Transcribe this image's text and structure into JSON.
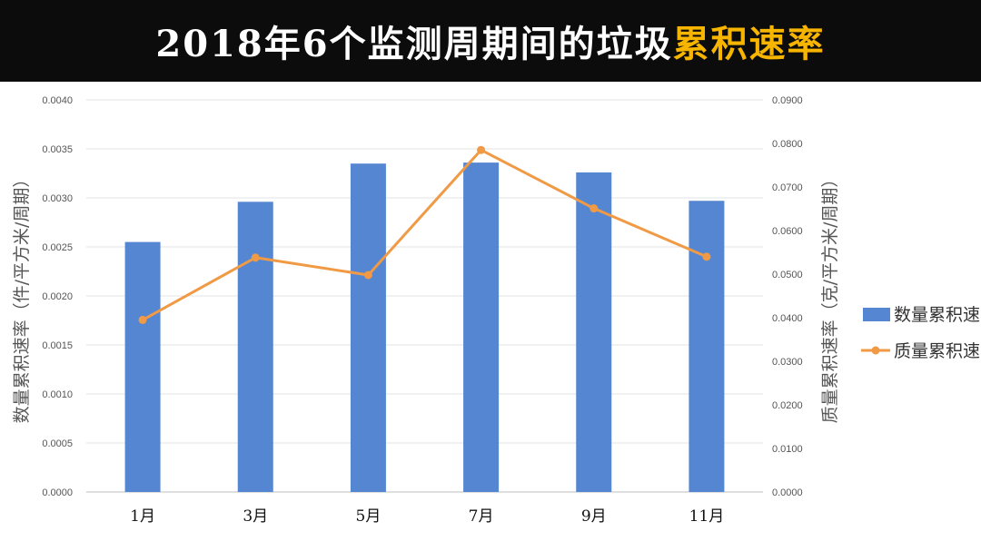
{
  "header": {
    "title_main": "2018年6个监测周期间的垃圾",
    "title_highlight": "累积速率"
  },
  "chart_data": {
    "type": "bar",
    "categories": [
      "1月",
      "3月",
      "5月",
      "7月",
      "9月",
      "11月"
    ],
    "series": [
      {
        "name": "数量累积速率",
        "type": "bar",
        "axis": "left",
        "color": "#5586d2",
        "values": [
          0.00255,
          0.00296,
          0.00335,
          0.00336,
          0.00326,
          0.00297
        ]
      },
      {
        "name": "质量累积速率",
        "type": "line",
        "axis": "right",
        "color": "#f09a45",
        "values": [
          0.0395,
          0.0538,
          0.0498,
          0.0785,
          0.0651,
          0.054
        ]
      }
    ],
    "y_left": {
      "label": "数量累积速率（件/平方米/周期）",
      "range": [
        0,
        0.004
      ],
      "ticks": [
        "0.0000",
        "0.0005",
        "0.0010",
        "0.0015",
        "0.0020",
        "0.0025",
        "0.0030",
        "0.0035",
        "0.0040"
      ]
    },
    "y_right": {
      "label": "质量累积速率（克/平方米/周期）",
      "range": [
        0,
        0.09
      ],
      "ticks": [
        "0.0000",
        "0.0100",
        "0.0200",
        "0.0300",
        "0.0400",
        "0.0500",
        "0.0600",
        "0.0700",
        "0.0800",
        "0.0900"
      ]
    },
    "grid": true,
    "legend_position": "right"
  }
}
